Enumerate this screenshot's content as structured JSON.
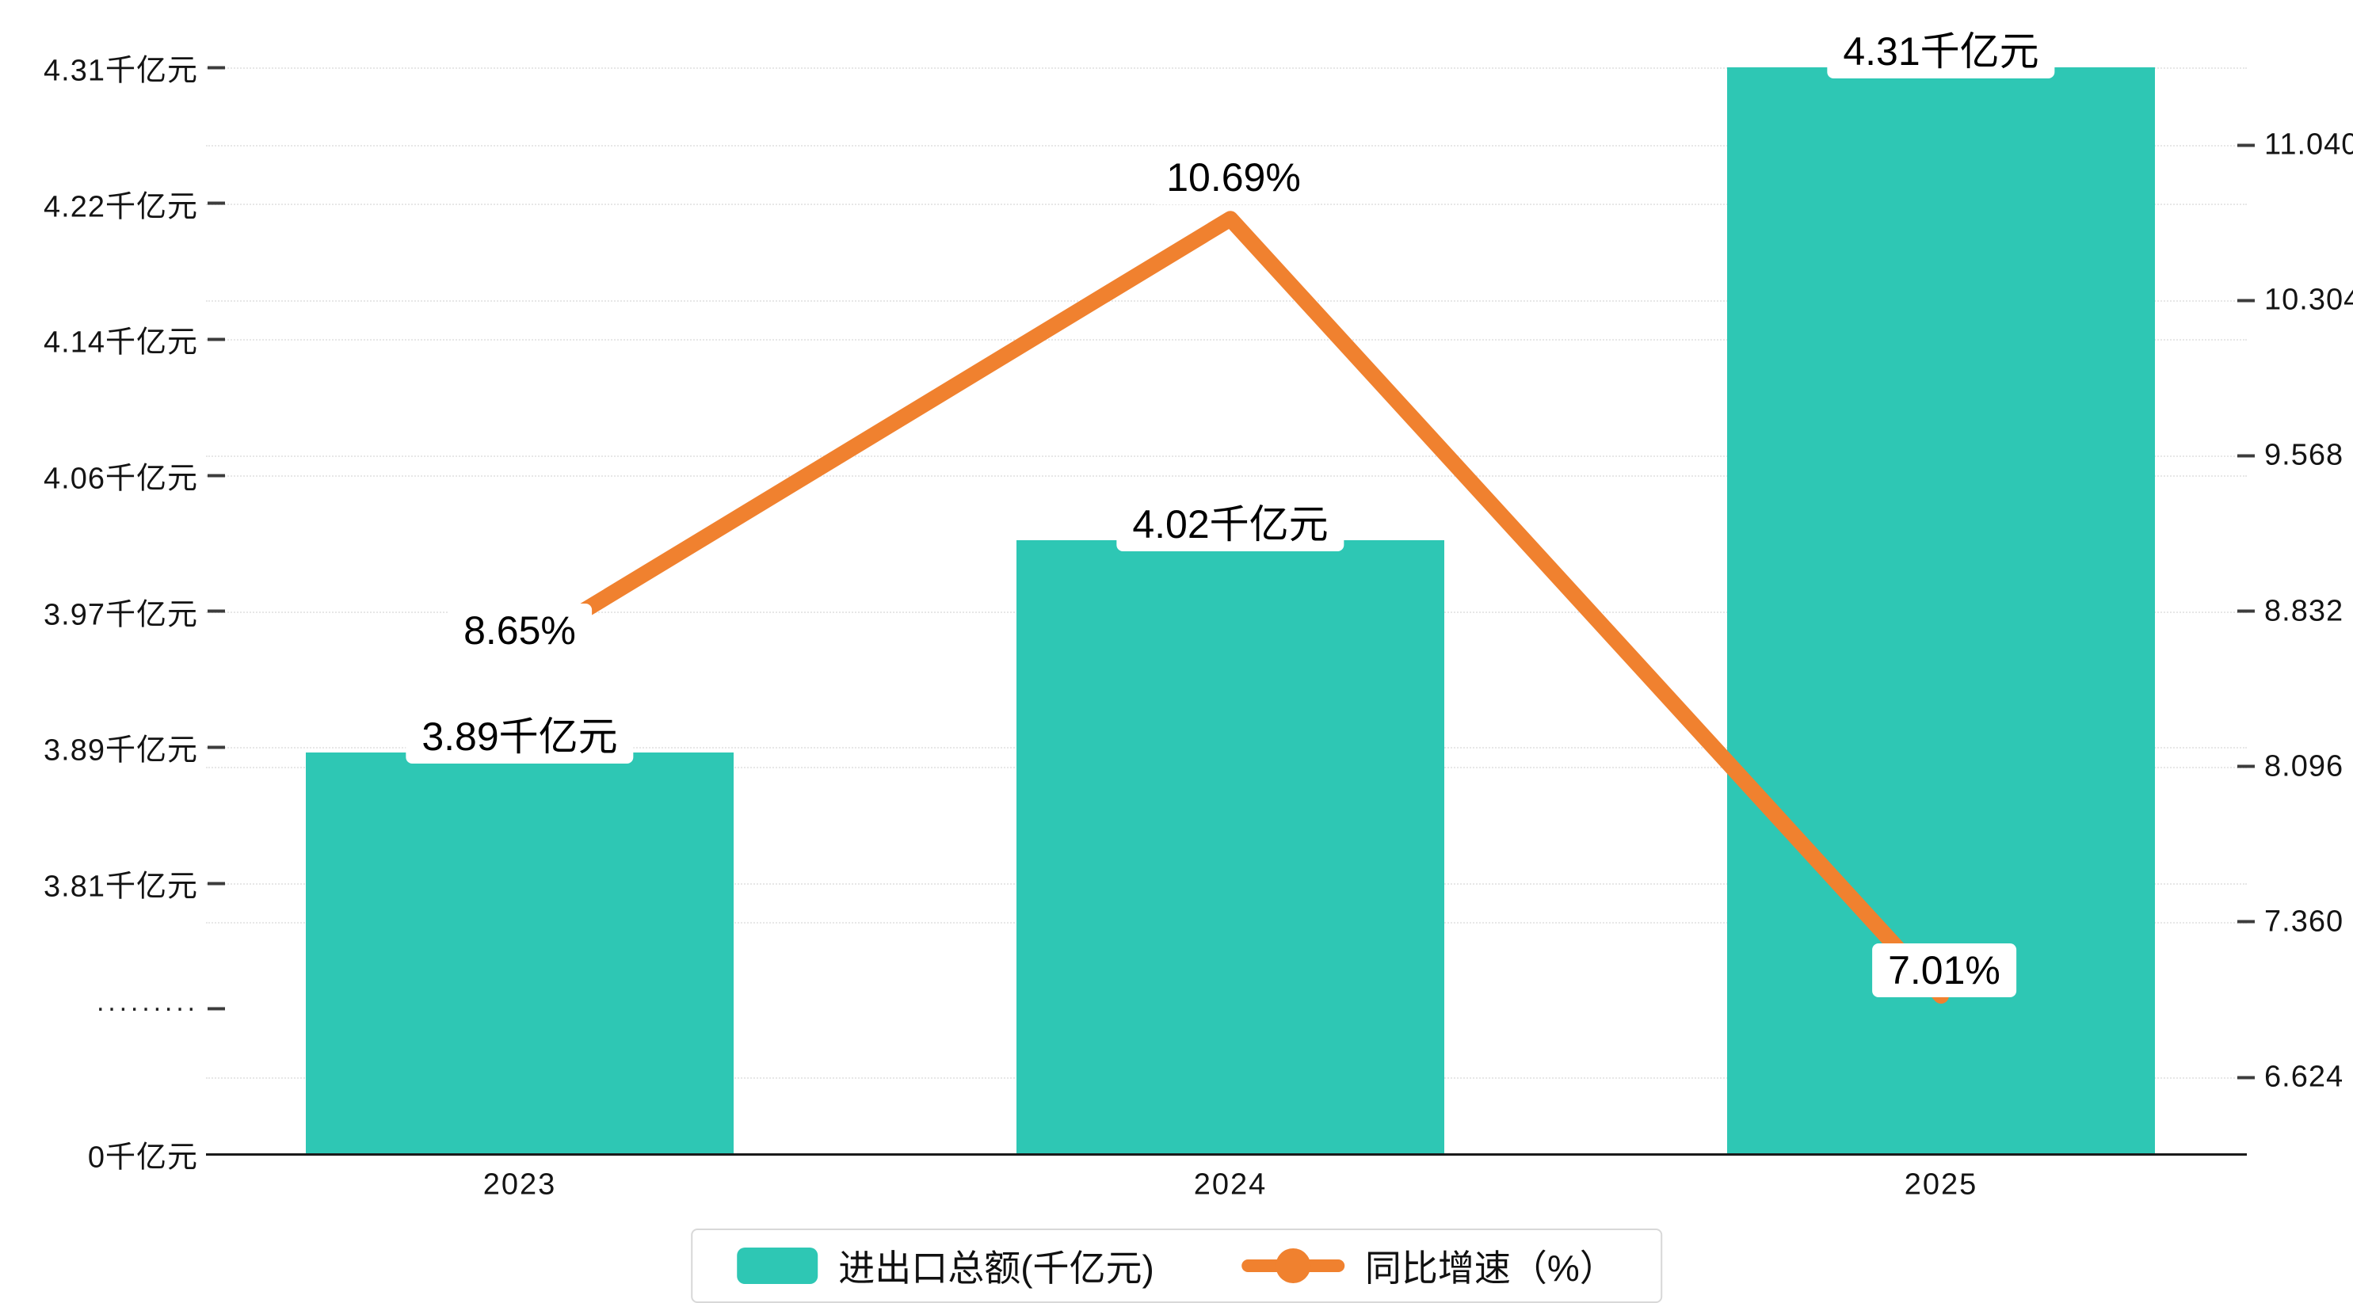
{
  "chart_data": {
    "type": "combo-bar-line",
    "categories": [
      "2023",
      "2024",
      "2025"
    ],
    "series": [
      {
        "name": "进出口总额(千亿元)",
        "type": "bar",
        "values": [
          3.89,
          4.02,
          4.31
        ],
        "unit": "千亿元",
        "color": "#2ec7b4",
        "data_labels": [
          "3.89千亿元",
          "4.02千亿元",
          "4.31千亿元"
        ]
      },
      {
        "name": "同比增速（%）",
        "type": "line",
        "values": [
          8.65,
          10.69,
          7.01
        ],
        "unit": "%",
        "color": "#f0812f",
        "data_labels": [
          "8.65%",
          "10.69%",
          "7.01%"
        ]
      }
    ],
    "left_axis": {
      "tick_labels_top_to_bottom": [
        "4.31千亿元",
        "4.22千亿元",
        "4.14千亿元",
        "4.06千亿元",
        "3.97千亿元",
        "3.89千亿元",
        "3.81千亿元"
      ],
      "axis_break_label": "·········",
      "zero_label": "0千亿元",
      "min": 3.81,
      "max": 4.31
    },
    "right_axis": {
      "tick_labels_top_to_bottom": [
        "11.040",
        "10.304",
        "9.568",
        "8.832",
        "8.096",
        "7.360",
        "6.624"
      ],
      "min": 6.624,
      "max": 11.04
    },
    "legend": [
      {
        "label": "进出口总额(千亿元)",
        "marker": "bar-swatch"
      },
      {
        "label": "同比增速（%）",
        "marker": "line-dot"
      }
    ],
    "grid": "dotted-horizontal",
    "legend_position": "bottom-center"
  }
}
